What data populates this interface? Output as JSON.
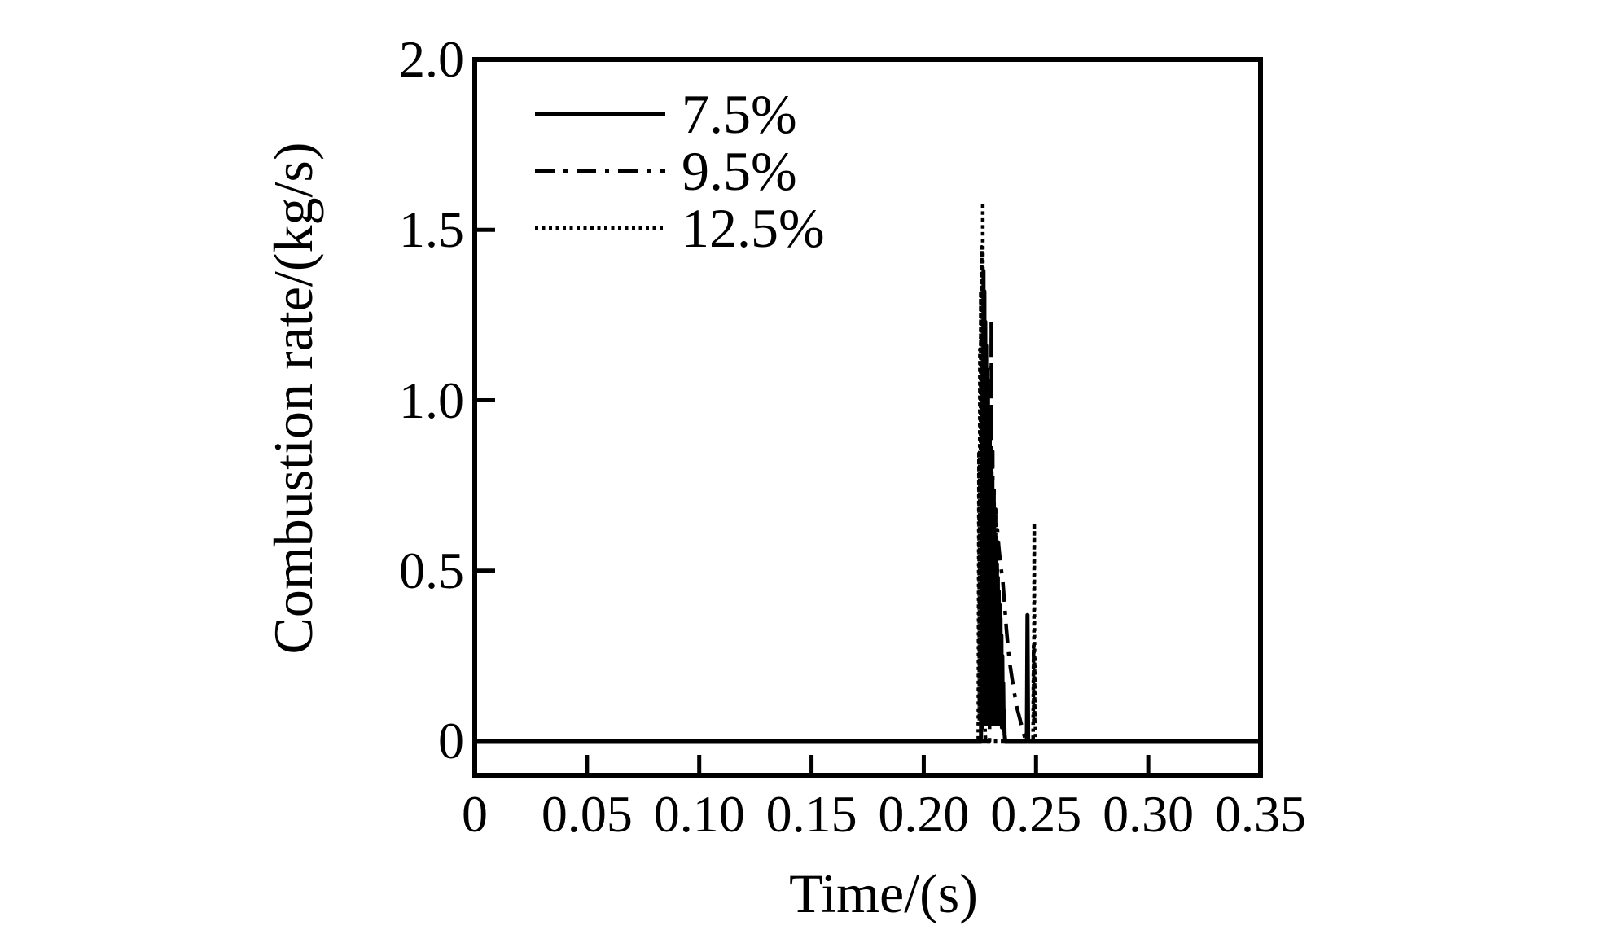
{
  "figure": {
    "background_color": "#ffffff",
    "ink_color": "#000000"
  },
  "legend": {
    "entries": [
      {
        "label": "7.5%",
        "style": "solid"
      },
      {
        "label": "9.5%",
        "style": "dashdot"
      },
      {
        "label": "12.5%",
        "style": "dotted"
      }
    ]
  },
  "chart_data": {
    "type": "line",
    "title": "",
    "xlabel": "Time/(s)",
    "ylabel": "Combustion rate/(kg/s)",
    "xlim": [
      0,
      0.35
    ],
    "ylim": [
      -0.1,
      2.0
    ],
    "grid": false,
    "legend_position": "upper-left-inside",
    "x_ticks": [
      {
        "value": 0.0,
        "label": "0"
      },
      {
        "value": 0.05,
        "label": "0.05"
      },
      {
        "value": 0.1,
        "label": "0.10"
      },
      {
        "value": 0.15,
        "label": "0.15"
      },
      {
        "value": 0.2,
        "label": "0.20"
      },
      {
        "value": 0.25,
        "label": "0.25"
      },
      {
        "value": 0.3,
        "label": "0.30"
      },
      {
        "value": 0.35,
        "label": "0.35"
      }
    ],
    "y_ticks": [
      {
        "value": 0.0,
        "label": "0"
      },
      {
        "value": 0.5,
        "label": "0.5"
      },
      {
        "value": 1.0,
        "label": "1.0"
      },
      {
        "value": 1.5,
        "label": "1.5"
      },
      {
        "value": 2.0,
        "label": "2.0"
      }
    ],
    "series": [
      {
        "name": "7.5%",
        "style": "solid",
        "peak": {
          "t": 0.2266,
          "value": 1.38
        },
        "points": [
          [
            0,
            0
          ],
          [
            0.2255,
            0
          ],
          [
            0.2258,
            0.6
          ],
          [
            0.226,
            0.04
          ],
          [
            0.2262,
            1.1
          ],
          [
            0.2264,
            0.05
          ],
          [
            0.2266,
            1.38
          ],
          [
            0.2268,
            0.06
          ],
          [
            0.227,
            1.32
          ],
          [
            0.2272,
            0.05
          ],
          [
            0.2274,
            1.23
          ],
          [
            0.2276,
            0.06
          ],
          [
            0.2278,
            1.16
          ],
          [
            0.228,
            0.05
          ],
          [
            0.2282,
            1.09
          ],
          [
            0.2284,
            0.06
          ],
          [
            0.2286,
            1.02
          ],
          [
            0.2288,
            0.05
          ],
          [
            0.229,
            0.96
          ],
          [
            0.2292,
            0.06
          ],
          [
            0.2294,
            0.9
          ],
          [
            0.2296,
            0.05
          ],
          [
            0.2298,
            0.84
          ],
          [
            0.23,
            0.06
          ],
          [
            0.2302,
            0.79
          ],
          [
            0.2304,
            0.05
          ],
          [
            0.2306,
            0.74
          ],
          [
            0.2308,
            0.06
          ],
          [
            0.231,
            0.69
          ],
          [
            0.2312,
            0.05
          ],
          [
            0.2314,
            0.64
          ],
          [
            0.2316,
            0.06
          ],
          [
            0.2318,
            0.6
          ],
          [
            0.232,
            0.05
          ],
          [
            0.2322,
            0.56
          ],
          [
            0.2324,
            0.06
          ],
          [
            0.2326,
            0.52
          ],
          [
            0.2328,
            0.05
          ],
          [
            0.233,
            0.48
          ],
          [
            0.2332,
            0.06
          ],
          [
            0.2334,
            0.44
          ],
          [
            0.2336,
            0.05
          ],
          [
            0.2338,
            0.4
          ],
          [
            0.234,
            0.06
          ],
          [
            0.2342,
            0.36
          ],
          [
            0.2344,
            0.05
          ],
          [
            0.2346,
            0.31
          ],
          [
            0.2348,
            0.04
          ],
          [
            0.235,
            0.25
          ],
          [
            0.2352,
            0.04
          ],
          [
            0.2354,
            0.17
          ],
          [
            0.2356,
            0.03
          ],
          [
            0.2358,
            0.09
          ],
          [
            0.236,
            0.02
          ],
          [
            0.2363,
            0
          ],
          [
            0.2459,
            0
          ],
          [
            0.2462,
            0.37
          ],
          [
            0.2465,
            0
          ],
          [
            0.35,
            0
          ]
        ]
      },
      {
        "name": "9.5%",
        "style": "dashdot",
        "peak": {
          "t": 0.2301,
          "value": 1.24
        },
        "points": [
          [
            0,
            0
          ],
          [
            0.2293,
            0
          ],
          [
            0.2296,
            0.65
          ],
          [
            0.2298,
            0.08
          ],
          [
            0.2301,
            1.24
          ],
          [
            0.2304,
            0.12
          ],
          [
            0.2307,
            0.85
          ],
          [
            0.231,
            0.1
          ],
          [
            0.2313,
            0.75
          ],
          [
            0.2316,
            0.12
          ],
          [
            0.232,
            0.68
          ],
          [
            0.2324,
            0.14
          ],
          [
            0.2328,
            0.62
          ],
          [
            0.2334,
            0.57
          ],
          [
            0.2342,
            0.52
          ],
          [
            0.2352,
            0.47
          ],
          [
            0.236,
            0.4
          ],
          [
            0.2368,
            0.33
          ],
          [
            0.2376,
            0.27
          ],
          [
            0.2385,
            0.22
          ],
          [
            0.2394,
            0.18
          ],
          [
            0.2404,
            0.14
          ],
          [
            0.2414,
            0.1
          ],
          [
            0.2426,
            0.07
          ],
          [
            0.2438,
            0.04
          ],
          [
            0.245,
            0.01
          ],
          [
            0.2456,
            0
          ],
          [
            0.35,
            0
          ]
        ]
      },
      {
        "name": "12.5%",
        "style": "dotted",
        "peak": {
          "t": 0.2263,
          "value": 1.58
        },
        "points": [
          [
            0,
            0
          ],
          [
            0.2243,
            0
          ],
          [
            0.2246,
            0.85
          ],
          [
            0.2248,
            0.06
          ],
          [
            0.225,
            1.15
          ],
          [
            0.2252,
            0.08
          ],
          [
            0.2254,
            1.32
          ],
          [
            0.2256,
            0.09
          ],
          [
            0.2258,
            1.45
          ],
          [
            0.226,
            0.1
          ],
          [
            0.2263,
            1.58
          ],
          [
            0.2266,
            0.08
          ],
          [
            0.2269,
            0.55
          ],
          [
            0.2272,
            0.05
          ],
          [
            0.2275,
            0
          ],
          [
            0.2487,
            0
          ],
          [
            0.2489,
            0.28
          ],
          [
            0.249,
            0.05
          ],
          [
            0.2492,
            0.64
          ],
          [
            0.2494,
            0.06
          ],
          [
            0.2496,
            0.25
          ],
          [
            0.2498,
            0
          ],
          [
            0.35,
            0
          ]
        ]
      }
    ]
  }
}
